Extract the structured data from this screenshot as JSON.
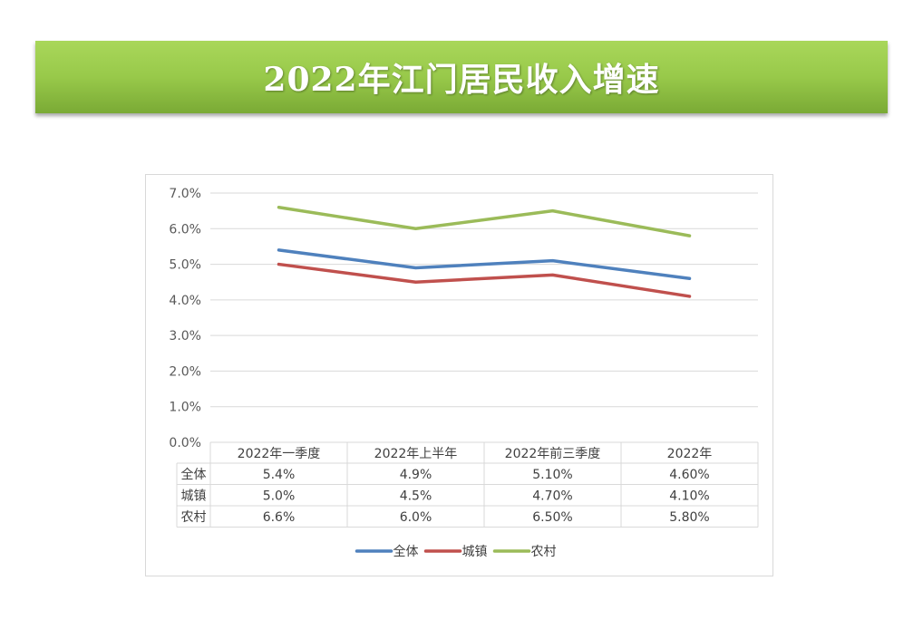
{
  "header": {
    "title": "2022年江门居民收入增速"
  },
  "chart_data": {
    "type": "line",
    "categories": [
      "2022年一季度",
      "2022年上半年",
      "2022年前三季度",
      "2022年"
    ],
    "series": [
      {
        "name": "全体",
        "values": [
          5.4,
          4.9,
          5.1,
          4.6
        ],
        "labels": [
          "5.4%",
          "4.9%",
          "5.10%",
          "4.60%"
        ],
        "color": "#4f81bd"
      },
      {
        "name": "城镇",
        "values": [
          5.0,
          4.5,
          4.7,
          4.1
        ],
        "labels": [
          "5.0%",
          "4.5%",
          "4.70%",
          "4.10%"
        ],
        "color": "#c0504d"
      },
      {
        "name": "农村",
        "values": [
          6.6,
          6.0,
          6.5,
          5.8
        ],
        "labels": [
          "6.6%",
          "6.0%",
          "6.50%",
          "5.80%"
        ],
        "color": "#9bbb59"
      }
    ],
    "ylim": [
      0,
      7
    ],
    "yticks": [
      "0.0%",
      "1.0%",
      "2.0%",
      "3.0%",
      "4.0%",
      "5.0%",
      "6.0%",
      "7.0%"
    ],
    "grid": true,
    "legend_position": "bottom",
    "data_table": true
  }
}
